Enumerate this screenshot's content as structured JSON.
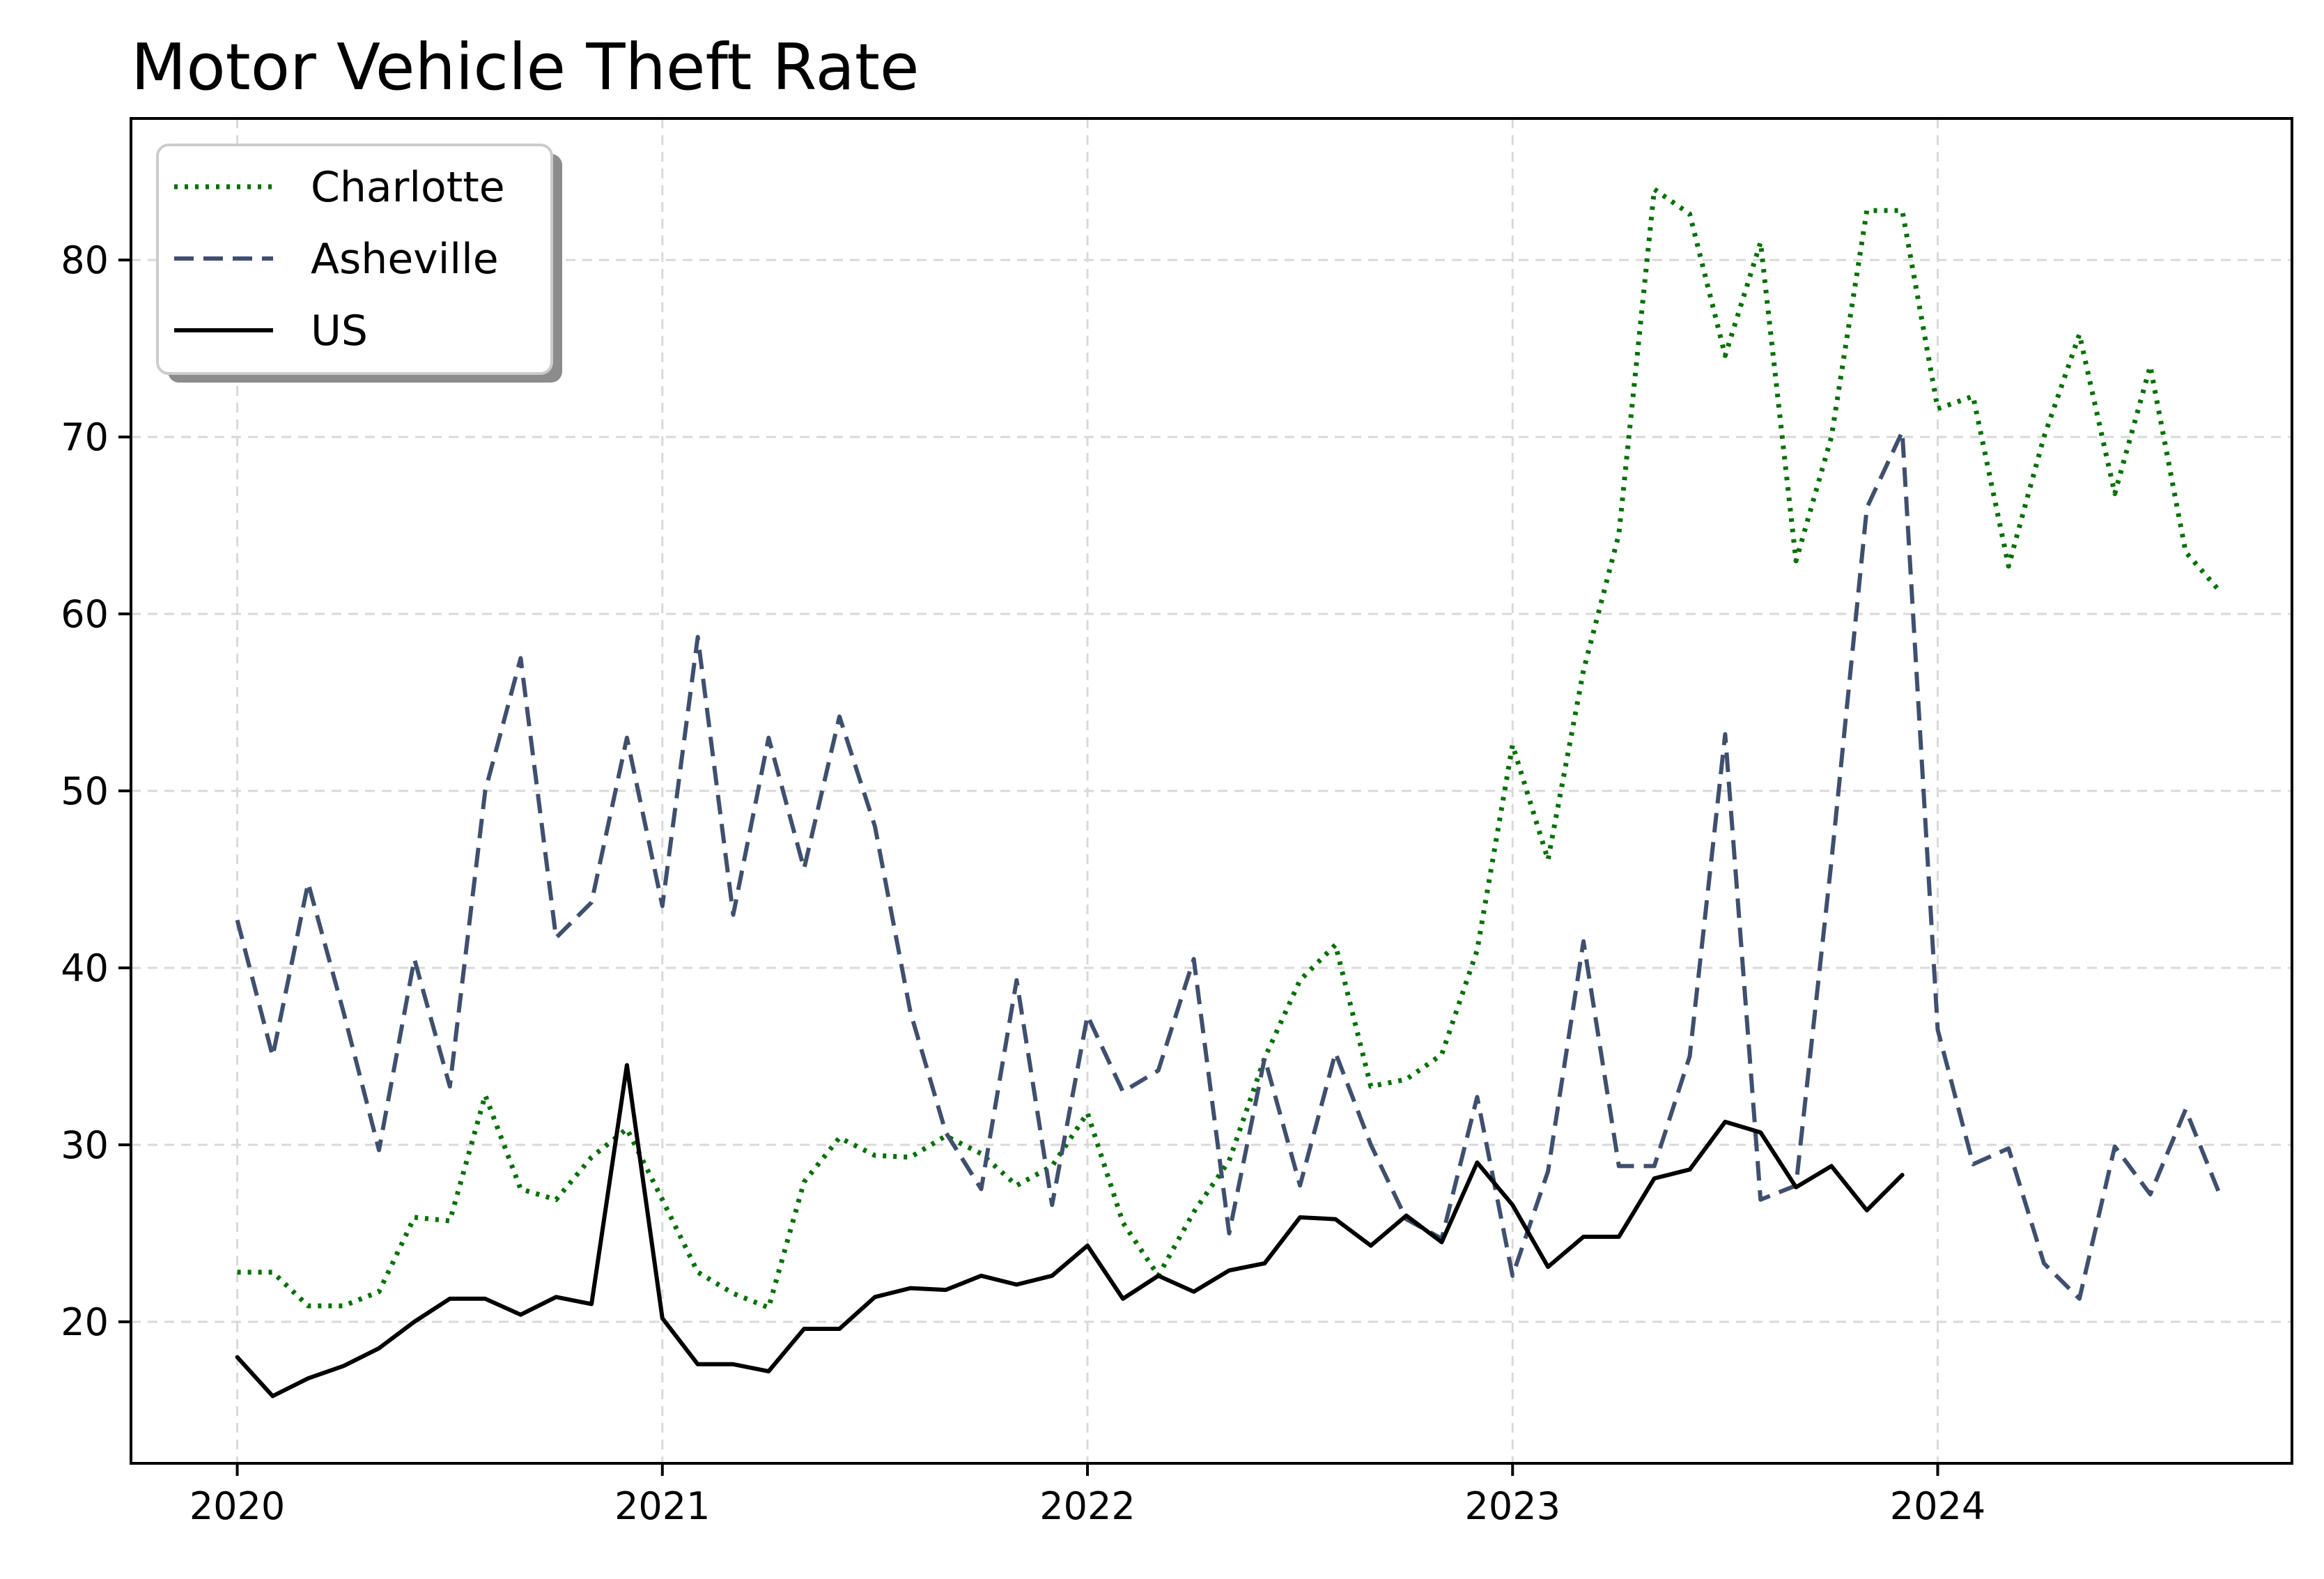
{
  "chart_data": {
    "type": "line",
    "title": "Motor Vehicle Theft Rate",
    "xlabel": "",
    "ylabel": "",
    "x_ticks": [
      "2020",
      "2021",
      "2022",
      "2023",
      "2024"
    ],
    "y_ticks": [
      "20",
      "30",
      "40",
      "50",
      "60",
      "70",
      "80"
    ],
    "xlim": [
      "2019-10",
      "2024-11"
    ],
    "ylim": [
      12,
      88
    ],
    "grid": true,
    "legend_position": "top-left",
    "series": [
      {
        "name": "Charlotte",
        "color": "#007000",
        "style": "dotted",
        "x": [
          "2020-01",
          "2020-02",
          "2020-03",
          "2020-04",
          "2020-05",
          "2020-06",
          "2020-07",
          "2020-08",
          "2020-09",
          "2020-10",
          "2020-11",
          "2020-12",
          "2021-01",
          "2021-02",
          "2021-03",
          "2021-04",
          "2021-05",
          "2021-06",
          "2021-07",
          "2021-08",
          "2021-09",
          "2021-10",
          "2021-11",
          "2021-12",
          "2022-01",
          "2022-02",
          "2022-03",
          "2022-04",
          "2022-05",
          "2022-06",
          "2022-07",
          "2022-08",
          "2022-09",
          "2022-10",
          "2022-11",
          "2022-12",
          "2023-01",
          "2023-02",
          "2023-03",
          "2023-04",
          "2023-05",
          "2023-06",
          "2023-07",
          "2023-08",
          "2023-09",
          "2023-10",
          "2023-11",
          "2023-12",
          "2024-01",
          "2024-02",
          "2024-03",
          "2024-04",
          "2024-05",
          "2024-06",
          "2024-07",
          "2024-08",
          "2024-09"
        ],
        "values": [
          22.8,
          22.8,
          20.9,
          20.9,
          21.7,
          25.9,
          25.7,
          32.8,
          27.5,
          26.9,
          29.3,
          30.9,
          26.9,
          22.8,
          21.6,
          20.8,
          27.9,
          30.4,
          29.4,
          29.3,
          30.5,
          29.5,
          27.7,
          28.8,
          31.8,
          25.6,
          22.6,
          26.2,
          29.1,
          34.9,
          39.3,
          41.3,
          33.3,
          33.7,
          35.1,
          41.0,
          52.6,
          46.1,
          56.8,
          64.5,
          84.0,
          82.6,
          74.6,
          81.0,
          63.0,
          70.0,
          82.8,
          82.8,
          71.6,
          72.3,
          62.7,
          70.0,
          75.8,
          66.8,
          74.0,
          63.5,
          61.2
        ]
      },
      {
        "name": "Asheville",
        "color": "#3f4f6e",
        "style": "dashed",
        "x": [
          "2020-01",
          "2020-02",
          "2020-03",
          "2020-04",
          "2020-05",
          "2020-06",
          "2020-07",
          "2020-08",
          "2020-09",
          "2020-10",
          "2020-11",
          "2020-12",
          "2021-01",
          "2021-02",
          "2021-03",
          "2021-04",
          "2021-05",
          "2021-06",
          "2021-07",
          "2021-08",
          "2021-09",
          "2021-10",
          "2021-11",
          "2021-12",
          "2022-01",
          "2022-02",
          "2022-03",
          "2022-04",
          "2022-05",
          "2022-06",
          "2022-07",
          "2022-08",
          "2022-09",
          "2022-10",
          "2022-11",
          "2022-12",
          "2023-01",
          "2023-02",
          "2023-03",
          "2023-04",
          "2023-05",
          "2023-06",
          "2023-07",
          "2023-08",
          "2023-09",
          "2023-10",
          "2023-11",
          "2023-12",
          "2024-01",
          "2024-02",
          "2024-03",
          "2024-04",
          "2024-05",
          "2024-06",
          "2024-07",
          "2024-08",
          "2024-09"
        ],
        "values": [
          42.7,
          35.0,
          44.8,
          37.5,
          29.7,
          40.5,
          33.3,
          50.0,
          57.5,
          41.7,
          43.7,
          53.0,
          43.5,
          58.7,
          43.0,
          53.0,
          45.6,
          54.2,
          48.0,
          37.5,
          30.7,
          27.5,
          39.3,
          26.6,
          37.3,
          33.0,
          34.2,
          40.5,
          25.0,
          34.9,
          27.7,
          35.2,
          30.0,
          25.8,
          24.7,
          32.7,
          22.6,
          28.5,
          41.5,
          28.8,
          28.8,
          35.0,
          53.2,
          26.9,
          27.7,
          46.0,
          66.0,
          70.3,
          36.5,
          28.9,
          29.8,
          23.3,
          21.3,
          29.9,
          27.2,
          32.0,
          27.0
        ]
      },
      {
        "name": "US",
        "color": "#000000",
        "style": "solid",
        "x": [
          "2020-01",
          "2020-02",
          "2020-03",
          "2020-04",
          "2020-05",
          "2020-06",
          "2020-07",
          "2020-08",
          "2020-09",
          "2020-10",
          "2020-11",
          "2020-12",
          "2021-01",
          "2021-02",
          "2021-03",
          "2021-04",
          "2021-05",
          "2021-06",
          "2021-07",
          "2021-08",
          "2021-09",
          "2021-10",
          "2021-11",
          "2021-12",
          "2022-01",
          "2022-02",
          "2022-03",
          "2022-04",
          "2022-05",
          "2022-06",
          "2022-07",
          "2022-08",
          "2022-09",
          "2022-10",
          "2022-11",
          "2022-12",
          "2023-01",
          "2023-02",
          "2023-03",
          "2023-04",
          "2023-05",
          "2023-06",
          "2023-07",
          "2023-08",
          "2023-09",
          "2023-10",
          "2023-11",
          "2023-12"
        ],
        "values": [
          18.0,
          15.8,
          16.8,
          17.5,
          18.5,
          20.0,
          21.3,
          21.3,
          20.4,
          21.4,
          21.0,
          34.5,
          20.2,
          17.6,
          17.6,
          17.2,
          19.6,
          19.6,
          21.4,
          21.9,
          21.8,
          22.6,
          22.1,
          22.6,
          24.3,
          21.3,
          22.6,
          21.7,
          22.9,
          23.3,
          25.9,
          25.8,
          24.3,
          26.0,
          24.5,
          29.0,
          26.6,
          23.1,
          24.8,
          24.8,
          28.1,
          28.6,
          31.3,
          30.7,
          27.6,
          28.8,
          26.3,
          28.3
        ]
      }
    ]
  }
}
